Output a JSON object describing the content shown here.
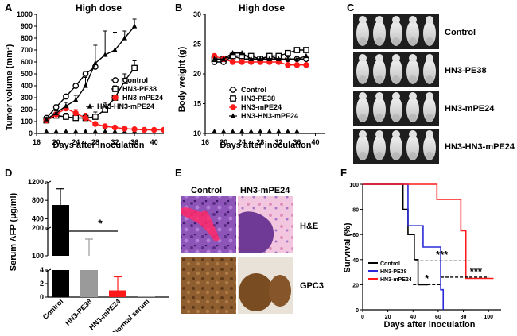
{
  "colors": {
    "black": "#000000",
    "red": "#ff1a1a",
    "gray": "#9a9a9a",
    "blue": "#2a2ad8",
    "he_pink": "#e4a6c8",
    "he_purple": "#7a3e9c",
    "ihc_brown": "#8a5a2e"
  },
  "chart_data": [
    {
      "id": "A",
      "type": "line",
      "panel_label": "A",
      "title": "High dose",
      "xlabel": "Days after inoculation",
      "ylabel": "Tumor volume (mm³)",
      "xlim": [
        16,
        42
      ],
      "ylim": [
        0,
        1000
      ],
      "xticks": [
        16,
        20,
        24,
        28,
        32,
        36,
        40
      ],
      "yticks": [
        0,
        100,
        200,
        300,
        400,
        500,
        600,
        700,
        800,
        900,
        1000
      ],
      "injection_days": [
        18,
        20,
        22,
        24,
        26,
        28,
        30,
        32,
        34,
        36
      ],
      "series": [
        {
          "name": "Control",
          "marker": "circle-open",
          "color": "#000000",
          "x": [
            18,
            20,
            22,
            24,
            26,
            28
          ],
          "y": [
            130,
            220,
            310,
            400,
            500,
            560
          ],
          "err": [
            15,
            20,
            20,
            20,
            20,
            20
          ]
        },
        {
          "name": "HN3-PE38",
          "marker": "square-open",
          "color": "#000000",
          "x": [
            18,
            20,
            22,
            24,
            26,
            28,
            30,
            32,
            34,
            36
          ],
          "y": [
            110,
            150,
            140,
            130,
            130,
            140,
            200,
            300,
            440,
            550
          ],
          "err": [
            15,
            30,
            30,
            30,
            30,
            40,
            60,
            100,
            60,
            60
          ]
        },
        {
          "name": "HN3-mPE24",
          "marker": "circle-filled",
          "color": "#ff1a1a",
          "x": [
            18,
            20,
            22,
            24,
            26,
            28,
            30,
            32,
            34,
            36,
            38,
            40,
            42
          ],
          "y": [
            110,
            160,
            210,
            170,
            130,
            80,
            60,
            50,
            40,
            35,
            30,
            30,
            30
          ],
          "err": [
            15,
            20,
            20,
            30,
            40,
            15,
            10,
            10,
            10,
            10,
            10,
            10,
            10
          ]
        },
        {
          "name": "HN3-HN3-mPE24",
          "marker": "triangle-filled",
          "color": "#000000",
          "x": [
            18,
            20,
            22,
            24,
            26,
            28,
            30,
            32,
            34,
            36
          ],
          "y": [
            120,
            170,
            230,
            280,
            400,
            590,
            660,
            700,
            800,
            900
          ],
          "err": [
            15,
            20,
            30,
            40,
            70,
            150,
            200,
            150,
            60,
            60
          ]
        }
      ]
    },
    {
      "id": "B",
      "type": "line",
      "panel_label": "B",
      "title": "High dose",
      "xlabel": "Days after inoculation",
      "ylabel": "Body weight (g)",
      "xlim": [
        16,
        42
      ],
      "ylim": [
        10,
        30
      ],
      "xticks": [
        16,
        20,
        24,
        28,
        32,
        36,
        40
      ],
      "yticks": [
        10,
        15,
        20,
        25,
        30
      ],
      "injection_days": [
        18,
        20,
        22,
        24,
        26,
        28,
        30,
        32,
        34,
        36
      ],
      "series": [
        {
          "name": "Control",
          "marker": "circle-open",
          "color": "#000000",
          "x": [
            18,
            20,
            22,
            24,
            26,
            28,
            30,
            32,
            34,
            36,
            38
          ],
          "y": [
            22,
            22,
            23,
            22.5,
            22.5,
            22.5,
            23,
            22.5,
            22.5,
            22.5,
            22.5
          ]
        },
        {
          "name": "HN3-PE38",
          "marker": "square-open",
          "color": "#000000",
          "x": [
            18,
            20,
            22,
            24,
            26,
            28,
            30,
            32,
            34,
            36,
            38
          ],
          "y": [
            22.5,
            22.5,
            23,
            23,
            23,
            22.5,
            23,
            23,
            23.5,
            24,
            24
          ]
        },
        {
          "name": "HN3-mPE24",
          "marker": "circle-filled",
          "color": "#ff1a1a",
          "x": [
            18,
            20,
            22,
            24,
            26,
            28,
            30,
            32,
            34,
            36,
            38
          ],
          "y": [
            23,
            22.5,
            22,
            22,
            22,
            22,
            22,
            22,
            21.5,
            21.5,
            21.5
          ]
        },
        {
          "name": "HN3-HN3-mPE24",
          "marker": "triangle-filled",
          "color": "#000000",
          "x": [
            18,
            20,
            22,
            24,
            26,
            28,
            30,
            32,
            34,
            36,
            38
          ],
          "y": [
            22.5,
            22.5,
            23.5,
            23.5,
            22.5,
            22.5,
            22.5,
            22.5,
            22.5,
            22.5,
            23
          ]
        }
      ]
    },
    {
      "id": "D",
      "type": "bar",
      "panel_label": "D",
      "ylabel": "Serum  AFP (μg/ml)",
      "categories": [
        "Control",
        "HN3-PE38",
        "HN3-mPE24",
        "Normal serum"
      ],
      "values": [
        700,
        100,
        1,
        0.05
      ],
      "errors": [
        350,
        60,
        2,
        0
      ],
      "bar_colors": [
        "#000000",
        "#9a9a9a",
        "#ff1a1a",
        "#aaaaaa"
      ],
      "axis_breaks": [
        {
          "range": [
            0,
            4
          ],
          "ticks": [
            0,
            2,
            4
          ]
        },
        {
          "range": [
            100,
            200
          ],
          "ticks": [
            100,
            200
          ]
        },
        {
          "range": [
            200,
            1200
          ],
          "ticks": [
            400,
            800,
            1200
          ]
        }
      ],
      "annotation": "*"
    },
    {
      "id": "F",
      "type": "line",
      "subtype": "survival-step",
      "panel_label": "F",
      "xlabel": "Days after inoculation",
      "ylabel": "Survival (%)",
      "xlim": [
        0,
        110
      ],
      "ylim": [
        0,
        100
      ],
      "xticks": [
        0,
        20,
        40,
        60,
        80,
        100
      ],
      "yticks": [
        0,
        20,
        40,
        60,
        80,
        100
      ],
      "series": [
        {
          "name": "Control",
          "color": "#000000",
          "x": [
            0,
            32,
            32,
            36,
            36,
            41,
            41,
            44,
            44,
            52
          ],
          "y": [
            100,
            100,
            80,
            80,
            60,
            60,
            40,
            40,
            20,
            20
          ]
        },
        {
          "name": "HN3-PE38",
          "color": "#2a2ad8",
          "x": [
            0,
            36,
            36,
            48,
            48,
            62,
            62,
            64,
            64
          ],
          "y": [
            100,
            100,
            67,
            67,
            50,
            50,
            16,
            16,
            0
          ]
        },
        {
          "name": "HN3-mPE24",
          "color": "#ff1a1a",
          "x": [
            0,
            59,
            59,
            78,
            78,
            82,
            82,
            84,
            84,
            104
          ],
          "y": [
            100,
            100,
            88,
            88,
            63,
            63,
            25,
            25,
            25,
            25
          ]
        }
      ],
      "annotations": [
        "***",
        "***",
        "*"
      ]
    }
  ],
  "panel_c": {
    "label": "C",
    "groups": [
      "Control",
      "HN3-PE38",
      "HN3-mPE24",
      "HN3-HN3-mPE24"
    ]
  },
  "panel_e": {
    "label": "E",
    "col_labels": [
      "Control",
      "HN3-mPE24"
    ],
    "row_labels": [
      "H&E",
      "GPC3"
    ]
  }
}
